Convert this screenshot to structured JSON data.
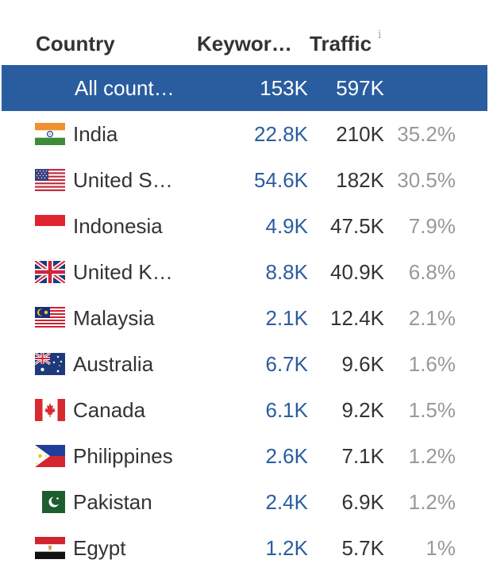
{
  "header": {
    "country": "Country",
    "keywords": "Keywor…",
    "traffic": "Traffic",
    "info_icon": "i"
  },
  "selected_row": {
    "name": "All count…",
    "keywords": "153K",
    "traffic": "597K"
  },
  "rows": [
    {
      "flag": "india-flag-icon",
      "name": "India",
      "keywords": "22.8K",
      "traffic": "210K",
      "share": "35.2%"
    },
    {
      "flag": "usa-flag-icon",
      "name": "United S…",
      "keywords": "54.6K",
      "traffic": "182K",
      "share": "30.5%"
    },
    {
      "flag": "indonesia-flag-icon",
      "name": "Indonesia",
      "keywords": "4.9K",
      "traffic": "47.5K",
      "share": "7.9%"
    },
    {
      "flag": "uk-flag-icon",
      "name": "United K…",
      "keywords": "8.8K",
      "traffic": "40.9K",
      "share": "6.8%"
    },
    {
      "flag": "malaysia-flag-icon",
      "name": "Malaysia",
      "keywords": "2.1K",
      "traffic": "12.4K",
      "share": "2.1%"
    },
    {
      "flag": "australia-flag-icon",
      "name": "Australia",
      "keywords": "6.7K",
      "traffic": "9.6K",
      "share": "1.6%"
    },
    {
      "flag": "canada-flag-icon",
      "name": "Canada",
      "keywords": "6.1K",
      "traffic": "9.2K",
      "share": "1.5%"
    },
    {
      "flag": "philippines-flag-icon",
      "name": "Philippines",
      "keywords": "2.6K",
      "traffic": "7.1K",
      "share": "1.2%"
    },
    {
      "flag": "pakistan-flag-icon",
      "name": "Pakistan",
      "keywords": "2.4K",
      "traffic": "6.9K",
      "share": "1.2%"
    },
    {
      "flag": "egypt-flag-icon",
      "name": "Egypt",
      "keywords": "1.2K",
      "traffic": "5.7K",
      "share": "1%"
    }
  ],
  "colors": {
    "selected_bg": "#2a5d9f",
    "keyword_link": "#2a5d9f",
    "share_text": "#999999"
  }
}
